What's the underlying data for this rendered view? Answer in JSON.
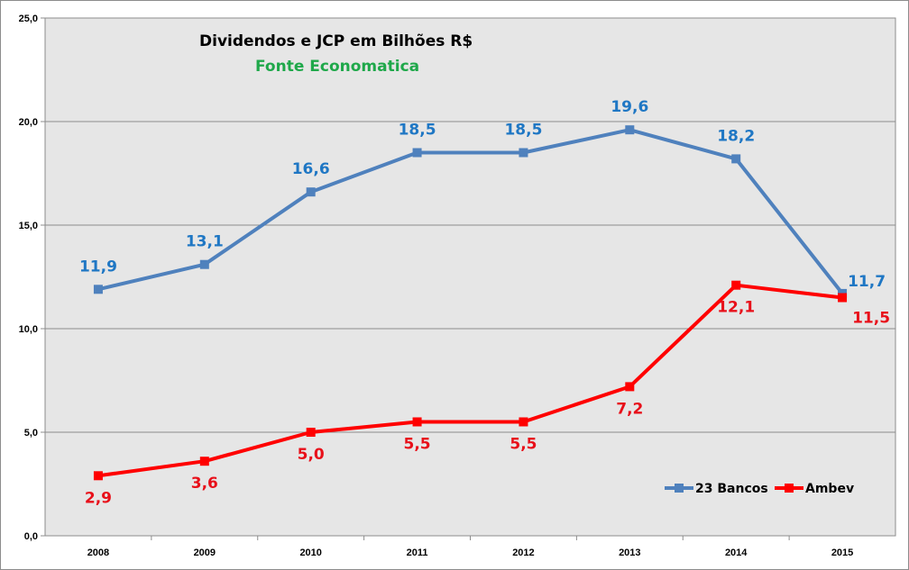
{
  "chart_data": {
    "type": "line",
    "title": "Dividendos e JCP em Bilhões R$",
    "subtitle": "Fonte Economatica",
    "categories": [
      "2008",
      "2009",
      "2010",
      "2011",
      "2012",
      "2013",
      "2014",
      "2015"
    ],
    "ylim": [
      0,
      25
    ],
    "yticks": [
      "0,0",
      "5,0",
      "10,0",
      "15,0",
      "20,0",
      "25,0"
    ],
    "grid": true,
    "legend_position": "bottom-right",
    "series": [
      {
        "name": "23 Bancos",
        "color": "#4f81bd",
        "label_color": "#1f77c4",
        "values": [
          11.9,
          13.1,
          16.6,
          18.5,
          18.5,
          19.6,
          18.2,
          11.7
        ],
        "labels": [
          "11,9",
          "13,1",
          "16,6",
          "18,5",
          "18,5",
          "19,6",
          "18,2",
          "11,7"
        ]
      },
      {
        "name": "Ambev",
        "color": "#ff0000",
        "label_color": "#e8101a",
        "values": [
          2.9,
          3.6,
          5.0,
          5.5,
          5.5,
          7.2,
          12.1,
          11.5
        ],
        "labels": [
          "2,9",
          "3,6",
          "5,0",
          "5,5",
          "5,5",
          "7,2",
          "12,1",
          "11,5"
        ]
      }
    ],
    "plot_background": "#e6e6e6"
  }
}
